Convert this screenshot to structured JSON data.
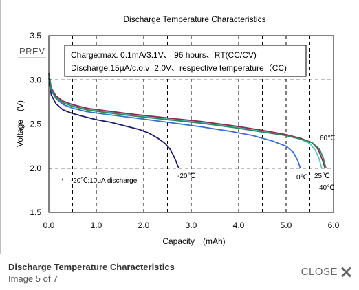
{
  "viewer": {
    "prev_label": "PREV",
    "caption_title": "Discharge Temperature Characteristics",
    "counter": "Image 5 of 7",
    "close_label": "CLOSE",
    "close_icon": "close-x-icon"
  },
  "chart_data": {
    "type": "line",
    "title": "Discharge Temperature Characteristics",
    "xlabel": "Capacity　(mAh)",
    "ylabel": "Voltage　(V)",
    "xlim": [
      0,
      6
    ],
    "ylim": [
      1.5,
      3.5
    ],
    "x_ticks": [
      "0.0",
      "1.0",
      "2.0",
      "3.0",
      "4.0",
      "5.0",
      "6.0"
    ],
    "y_ticks": [
      "1.5",
      "2.0",
      "2.5",
      "3.0",
      "3.5"
    ],
    "grid": true,
    "conditions": [
      "Charge:max. 0.1mA/3.1V、 96 hours、RT(CC/CV)",
      "Discharge:15μA/c.o.v=2.0V、respective temperature（CC)"
    ],
    "footnote": "*　-20℃:10μA discharge",
    "series": [
      {
        "name": "-20℃",
        "color": "#1c1c6b",
        "x": [
          0.0,
          0.05,
          0.15,
          0.3,
          0.5,
          0.7,
          1.0,
          1.3,
          1.6,
          1.9,
          2.1,
          2.3,
          2.45,
          2.55,
          2.62,
          2.68,
          2.72,
          2.75
        ],
        "y": [
          3.02,
          2.83,
          2.73,
          2.66,
          2.62,
          2.59,
          2.55,
          2.52,
          2.48,
          2.44,
          2.4,
          2.34,
          2.28,
          2.22,
          2.15,
          2.08,
          2.02,
          2.0
        ]
      },
      {
        "name": "0℃",
        "color": "#3a6fd1",
        "x": [
          0.0,
          0.05,
          0.15,
          0.3,
          0.5,
          0.8,
          1.2,
          1.8,
          2.5,
          3.2,
          3.8,
          4.3,
          4.7,
          5.0,
          5.15,
          5.25,
          5.3
        ],
        "y": [
          3.05,
          2.88,
          2.79,
          2.72,
          2.68,
          2.64,
          2.61,
          2.57,
          2.52,
          2.47,
          2.42,
          2.37,
          2.31,
          2.25,
          2.18,
          2.08,
          2.0
        ]
      },
      {
        "name": "25℃",
        "color": "#55c8c8",
        "x": [
          0.0,
          0.05,
          0.15,
          0.3,
          0.5,
          0.8,
          1.2,
          1.8,
          2.5,
          3.2,
          3.9,
          4.5,
          5.0,
          5.3,
          5.5,
          5.62,
          5.7,
          5.75
        ],
        "y": [
          3.07,
          2.9,
          2.81,
          2.75,
          2.71,
          2.67,
          2.64,
          2.6,
          2.56,
          2.52,
          2.47,
          2.42,
          2.37,
          2.33,
          2.28,
          2.2,
          2.1,
          2.0
        ]
      },
      {
        "name": "40℃",
        "color": "#8f2a52",
        "x": [
          0.0,
          0.05,
          0.15,
          0.3,
          0.5,
          0.8,
          1.2,
          1.8,
          2.5,
          3.2,
          3.9,
          4.5,
          5.0,
          5.3,
          5.55,
          5.68,
          5.76,
          5.82
        ],
        "y": [
          3.08,
          2.91,
          2.82,
          2.76,
          2.72,
          2.68,
          2.65,
          2.61,
          2.57,
          2.53,
          2.48,
          2.43,
          2.38,
          2.34,
          2.29,
          2.21,
          2.1,
          2.0
        ]
      },
      {
        "name": "60℃",
        "color": "#2e8b57",
        "x": [
          0.0,
          0.05,
          0.15,
          0.3,
          0.5,
          0.8,
          1.2,
          1.8,
          2.5,
          3.2,
          3.9,
          4.5,
          5.0,
          5.3,
          5.55,
          5.7,
          5.78,
          5.84
        ],
        "y": [
          3.06,
          2.89,
          2.8,
          2.74,
          2.7,
          2.66,
          2.63,
          2.59,
          2.55,
          2.51,
          2.46,
          2.41,
          2.37,
          2.33,
          2.29,
          2.22,
          2.12,
          2.0
        ]
      }
    ]
  }
}
